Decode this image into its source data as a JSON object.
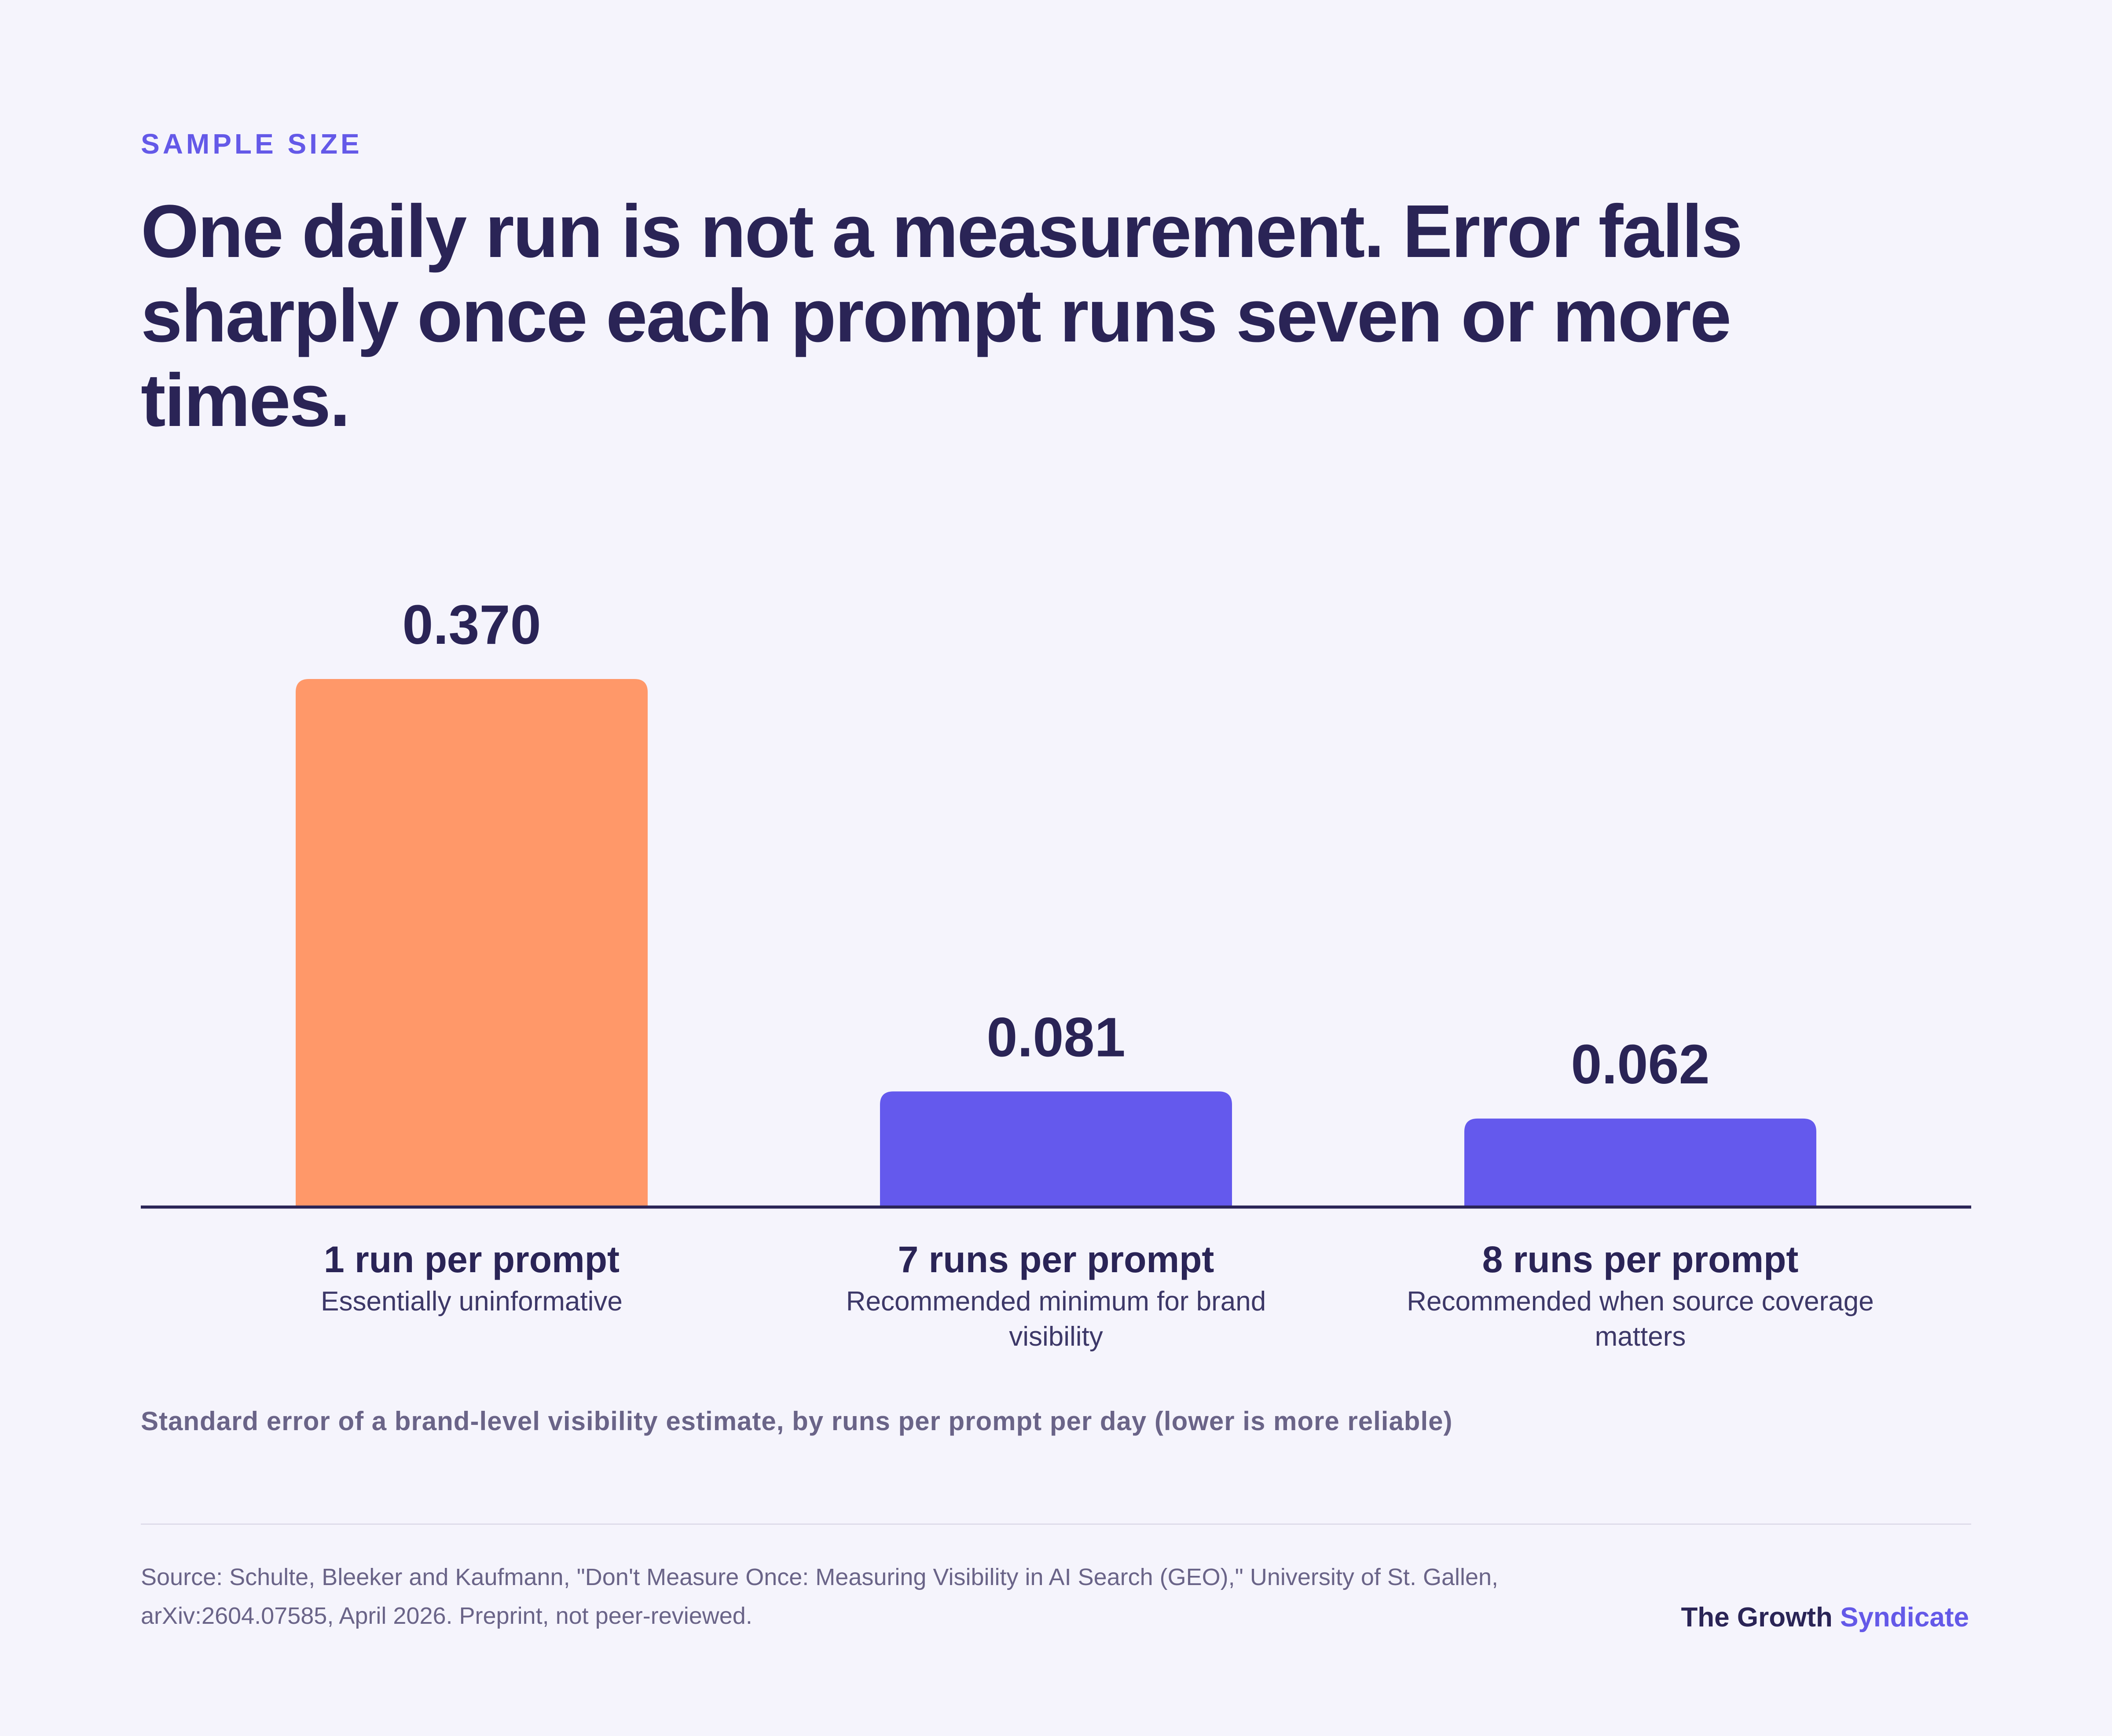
{
  "eyebrow": "SAMPLE SIZE",
  "headline": "One daily run is not a measurement. Error falls sharply once each prompt runs seven or more times.",
  "caption": "Standard error of a brand-level visibility estimate, by runs per prompt per day (lower is more reliable)",
  "source": "Source: Schulte, Bleeker and Kaufmann, \"Don't Measure Once: Measuring Visibility in AI Search (GEO),\" University of St. Gallen, arXiv:2604.07585, April 2026. Preprint, not peer-reviewed.",
  "brand": {
    "part1": "The Growth",
    "part2": "Syndicate"
  },
  "colors": {
    "highlight": "#ff9869",
    "bar": "#6459ed",
    "ink": "#2a2456",
    "accent": "#6459e8"
  },
  "chart_data": {
    "type": "bar",
    "categories": [
      "1 run per prompt",
      "7 runs per prompt",
      "8 runs per prompt"
    ],
    "descriptions": [
      [
        "Essentially uninformative"
      ],
      [
        "Recommended minimum for brand",
        "visibility"
      ],
      [
        "Recommended when source coverage",
        "matters"
      ]
    ],
    "values": [
      0.37,
      0.081,
      0.062
    ],
    "value_labels": [
      "0.370",
      "0.081",
      "0.062"
    ],
    "highlight_index": 0,
    "ylim": [
      0,
      0.37
    ],
    "grid": false
  }
}
